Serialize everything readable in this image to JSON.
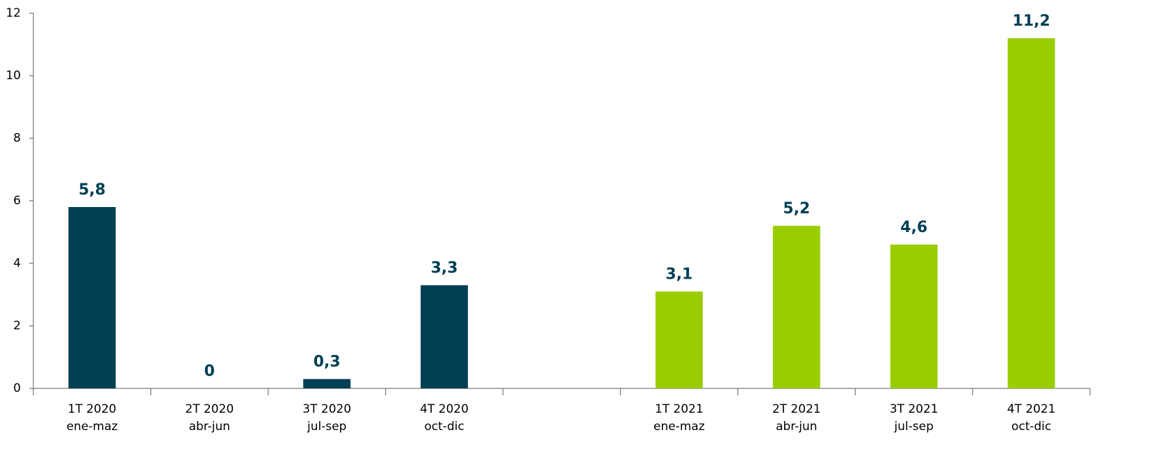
{
  "chart_data": {
    "type": "bar",
    "categories": [
      [
        "1T 2020",
        "ene-maz"
      ],
      [
        "2T 2020",
        "abr-jun"
      ],
      [
        "3T 2020",
        "jul-sep"
      ],
      [
        "4T 2020",
        "oct-dic"
      ],
      null,
      [
        "1T 2021",
        "ene-maz"
      ],
      [
        "2T 2021",
        "abr-jun"
      ],
      [
        "3T 2021",
        "jul-sep"
      ],
      [
        "4T 2021",
        "oct-dic"
      ]
    ],
    "values": [
      5.8,
      0,
      0.3,
      3.3,
      null,
      3.1,
      5.2,
      4.6,
      11.2
    ],
    "value_labels": [
      "5,8",
      "0",
      "0,3",
      "3,3",
      null,
      "3,1",
      "5,2",
      "4,6",
      "11,2"
    ],
    "colors": [
      "#003f54",
      "#003f54",
      "#003f54",
      "#003f54",
      null,
      "#9acd00",
      "#9acd00",
      "#9acd00",
      "#9acd00"
    ],
    "ylim": [
      0,
      12
    ],
    "yticks": [
      0,
      2,
      4,
      6,
      8,
      10,
      12
    ],
    "grid": false
  }
}
